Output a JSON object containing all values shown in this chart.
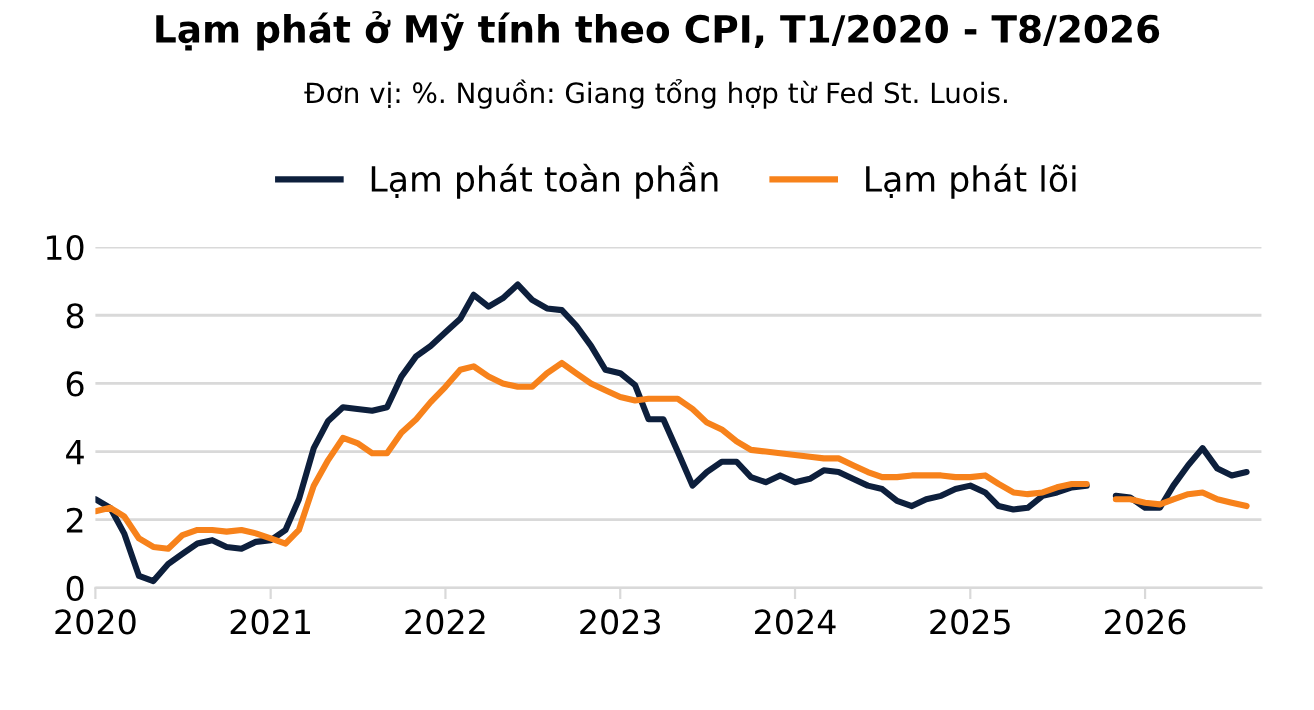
{
  "chart_data": {
    "type": "line",
    "title": "Lạm phát ở Mỹ tính theo CPI, T1/2020 - T8/2026",
    "subtitle": "Đơn vị: %. Nguồn: Giang tổng hợp từ Fed St. Luois.",
    "x": [
      "2020-01",
      "2020-02",
      "2020-03",
      "2020-04",
      "2020-05",
      "2020-06",
      "2020-07",
      "2020-08",
      "2020-09",
      "2020-10",
      "2020-11",
      "2020-12",
      "2021-01",
      "2021-02",
      "2021-03",
      "2021-04",
      "2021-05",
      "2021-06",
      "2021-07",
      "2021-08",
      "2021-09",
      "2021-10",
      "2021-11",
      "2021-12",
      "2022-01",
      "2022-02",
      "2022-03",
      "2022-04",
      "2022-05",
      "2022-06",
      "2022-07",
      "2022-08",
      "2022-09",
      "2022-10",
      "2022-11",
      "2022-12",
      "2023-01",
      "2023-02",
      "2023-03",
      "2023-04",
      "2023-05",
      "2023-06",
      "2023-07",
      "2023-08",
      "2023-09",
      "2023-10",
      "2023-11",
      "2023-12",
      "2024-01",
      "2024-02",
      "2024-03",
      "2024-04",
      "2024-05",
      "2024-06",
      "2024-07",
      "2024-08",
      "2024-09",
      "2024-10",
      "2024-11",
      "2024-12",
      "2025-01",
      "2025-02",
      "2025-03",
      "2025-04",
      "2025-05",
      "2025-06",
      "2025-07",
      "2025-08",
      "2025-09",
      "2025-10",
      "2025-11",
      "2025-12",
      "2026-01",
      "2026-02",
      "2026-03",
      "2026-04",
      "2026-05",
      "2026-06",
      "2026-07",
      "2026-08"
    ],
    "series": [
      {
        "name": "Lạm phát toàn phần",
        "color": "#0d1f3c",
        "values": [
          2.6,
          2.35,
          1.6,
          0.35,
          0.2,
          0.7,
          1.0,
          1.3,
          1.4,
          1.2,
          1.15,
          1.35,
          1.4,
          1.7,
          2.6,
          4.1,
          4.9,
          5.3,
          5.25,
          5.2,
          5.3,
          6.2,
          6.8,
          7.1,
          7.5,
          7.9,
          8.6,
          8.25,
          8.5,
          8.9,
          8.45,
          8.2,
          8.15,
          7.7,
          7.1,
          6.4,
          6.3,
          5.95,
          4.95,
          4.95,
          4.0,
          3.0,
          3.4,
          3.7,
          3.7,
          3.25,
          3.1,
          3.3,
          3.1,
          3.2,
          3.45,
          3.4,
          3.2,
          3.0,
          2.9,
          2.55,
          2.4,
          2.6,
          2.7,
          2.9,
          3.0,
          2.8,
          2.4,
          2.3,
          2.35,
          2.7,
          2.8,
          2.95,
          3.0,
          null,
          2.7,
          2.65,
          2.35,
          2.35,
          3.0,
          3.6,
          4.1,
          3.5,
          3.3,
          3.4
        ]
      },
      {
        "name": "Lạm phát lõi",
        "color": "#f7821b",
        "values": [
          2.25,
          2.35,
          2.1,
          1.45,
          1.2,
          1.15,
          1.55,
          1.7,
          1.7,
          1.65,
          1.7,
          1.6,
          1.45,
          1.3,
          1.7,
          3.0,
          3.75,
          4.4,
          4.25,
          3.95,
          3.95,
          4.55,
          4.95,
          5.45,
          5.9,
          6.4,
          6.5,
          6.2,
          6.0,
          5.9,
          5.9,
          6.3,
          6.6,
          6.3,
          6.0,
          5.8,
          5.6,
          5.5,
          5.55,
          5.55,
          5.55,
          5.25,
          4.85,
          4.65,
          4.3,
          4.05,
          4.0,
          3.95,
          3.9,
          3.85,
          3.8,
          3.8,
          3.6,
          3.4,
          3.25,
          3.25,
          3.3,
          3.3,
          3.3,
          3.25,
          3.25,
          3.3,
          3.05,
          2.8,
          2.75,
          2.8,
          2.95,
          3.05,
          3.05,
          null,
          2.6,
          2.6,
          2.5,
          2.45,
          2.6,
          2.75,
          2.8,
          2.6,
          2.5,
          2.4
        ]
      }
    ],
    "xlim": [
      "2020-01",
      "2026-09"
    ],
    "xticks": [
      "2020",
      "2021",
      "2022",
      "2023",
      "2024",
      "2025",
      "2026"
    ],
    "ylim": [
      0,
      10
    ],
    "yticks": [
      0,
      2,
      4,
      6,
      8,
      10
    ],
    "grid": "y",
    "legend": "top",
    "line_style": "solid",
    "marker": "none"
  }
}
